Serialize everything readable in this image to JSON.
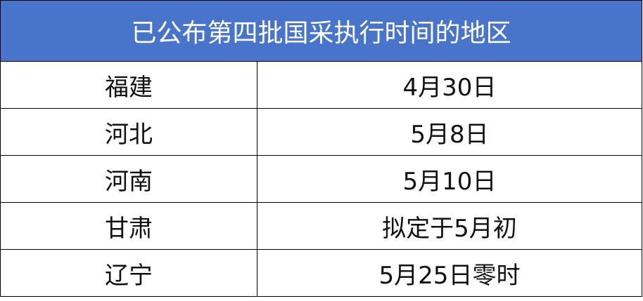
{
  "title": "已公布第四批国采执行时间的地区",
  "header_color": "#4874CB",
  "rows": [
    {
      "region": "福建",
      "date": "4月30日"
    },
    {
      "region": "河北",
      "date": "5月8日"
    },
    {
      "region": "河南",
      "date": "5月10日"
    },
    {
      "region": "甘肃",
      "date": "拟定于5月初"
    },
    {
      "region": "辽宁",
      "date": "5月25日零时"
    }
  ]
}
